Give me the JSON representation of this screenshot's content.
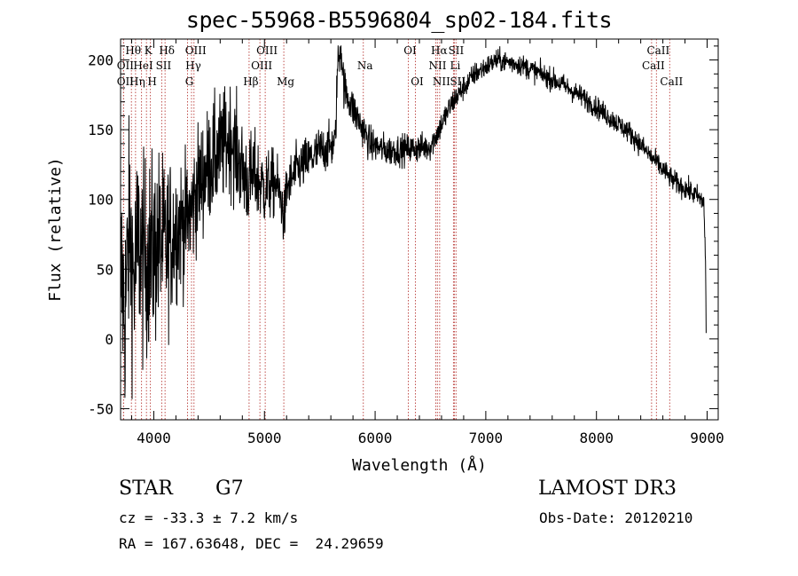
{
  "chart_data": {
    "type": "line",
    "title": "spec-55968-B5596804_sp02-184.fits",
    "xlabel": "Wavelength (Å)",
    "ylabel": "Flux (relative)",
    "xlim": [
      3700,
      9100
    ],
    "ylim": [
      -58,
      215
    ],
    "x_ticks": [
      4000,
      5000,
      6000,
      7000,
      8000,
      9000
    ],
    "y_ticks": [
      -50,
      0,
      50,
      100,
      150,
      200
    ],
    "spectrum_anchors": [
      [
        3700,
        50
      ],
      [
        3740,
        20
      ],
      [
        3780,
        80
      ],
      [
        3820,
        40
      ],
      [
        3860,
        70
      ],
      [
        3900,
        55
      ],
      [
        3950,
        60
      ],
      [
        4000,
        62
      ],
      [
        4050,
        70
      ],
      [
        4100,
        65
      ],
      [
        4200,
        80
      ],
      [
        4300,
        85
      ],
      [
        4340,
        92
      ],
      [
        4400,
        110
      ],
      [
        4500,
        125
      ],
      [
        4600,
        135
      ],
      [
        4700,
        145
      ],
      [
        4800,
        120
      ],
      [
        4861,
        112
      ],
      [
        4900,
        118
      ],
      [
        5000,
        108
      ],
      [
        5100,
        112
      ],
      [
        5150,
        100
      ],
      [
        5180,
        85
      ],
      [
        5200,
        108
      ],
      [
        5300,
        122
      ],
      [
        5400,
        128
      ],
      [
        5500,
        135
      ],
      [
        5600,
        138
      ],
      [
        5640,
        140
      ],
      [
        5660,
        195
      ],
      [
        5690,
        210
      ],
      [
        5720,
        180
      ],
      [
        5800,
        165
      ],
      [
        5893,
        150
      ],
      [
        5950,
        140
      ],
      [
        6100,
        135
      ],
      [
        6300,
        136
      ],
      [
        6500,
        138
      ],
      [
        6563,
        148
      ],
      [
        6700,
        170
      ],
      [
        6900,
        190
      ],
      [
        7100,
        200
      ],
      [
        7300,
        197
      ],
      [
        7500,
        190
      ],
      [
        7700,
        182
      ],
      [
        7900,
        172
      ],
      [
        8100,
        160
      ],
      [
        8300,
        148
      ],
      [
        8500,
        130
      ],
      [
        8700,
        113
      ],
      [
        8900,
        103
      ],
      [
        8970,
        98
      ],
      [
        8985,
        60
      ],
      [
        8992,
        -5
      ]
    ],
    "noise_profile": [
      [
        3700,
        40
      ],
      [
        4050,
        34
      ],
      [
        4300,
        22
      ],
      [
        4700,
        20
      ],
      [
        5200,
        10
      ],
      [
        5650,
        8
      ],
      [
        6000,
        6
      ],
      [
        6600,
        5
      ],
      [
        7000,
        4
      ],
      [
        8000,
        4
      ],
      [
        9000,
        4
      ]
    ],
    "line_markers": [
      {
        "label": "Hθ",
        "wavelength": 3798,
        "row": 0
      },
      {
        "label": "OII",
        "wavelength": 3727,
        "row": 1
      },
      {
        "label": "OII",
        "wavelength": 3727,
        "row": 2
      },
      {
        "label": "K",
        "wavelength": 3934,
        "row": 0
      },
      {
        "label": "Hδ",
        "wavelength": 4102,
        "row": 0
      },
      {
        "label": "HeI",
        "wavelength": 3889,
        "row": 1
      },
      {
        "label": "SII",
        "wavelength": 4072,
        "row": 1
      },
      {
        "label": "Hη",
        "wavelength": 3835,
        "row": 2
      },
      {
        "label": "H",
        "wavelength": 3969,
        "row": 2
      },
      {
        "label": "OIII",
        "wavelength": 4363,
        "row": 0
      },
      {
        "label": "Hγ",
        "wavelength": 4341,
        "row": 1
      },
      {
        "label": "G",
        "wavelength": 4305,
        "row": 2
      },
      {
        "label": "OIII",
        "wavelength": 5007,
        "row": 0
      },
      {
        "label": "OIII",
        "wavelength": 4959,
        "row": 1
      },
      {
        "label": "Hβ",
        "wavelength": 4861,
        "row": 2
      },
      {
        "label": "Mg",
        "wavelength": 5175,
        "row": 2
      },
      {
        "label": "Na",
        "wavelength": 5893,
        "row": 1
      },
      {
        "label": "OI",
        "wavelength": 6300,
        "row": 0
      },
      {
        "label": "OI",
        "wavelength": 6364,
        "row": 2
      },
      {
        "label": "Hα",
        "wavelength": 6563,
        "row": 0
      },
      {
        "label": "SII",
        "wavelength": 6716,
        "row": 0
      },
      {
        "label": "NII",
        "wavelength": 6548,
        "row": 1
      },
      {
        "label": "Li",
        "wavelength": 6708,
        "row": 1
      },
      {
        "label": "NII",
        "wavelength": 6583,
        "row": 2
      },
      {
        "label": "SII",
        "wavelength": 6731,
        "row": 2
      },
      {
        "label": "CaII",
        "wavelength": 8542,
        "row": 0
      },
      {
        "label": "CaII",
        "wavelength": 8498,
        "row": 1
      },
      {
        "label": "CaII",
        "wavelength": 8662,
        "row": 2
      }
    ],
    "colors": {
      "spectrum": "#000000",
      "markers": "#c0504d",
      "axes": "#000000"
    }
  },
  "info": {
    "object_class": "STAR",
    "subclass": "G7",
    "survey": "LAMOST DR3",
    "cz": "cz = -33.3 ± 7.2 km/s",
    "obs_date": "Obs-Date: 20120210",
    "coords": "RA = 167.63648, DEC =  24.29659"
  }
}
